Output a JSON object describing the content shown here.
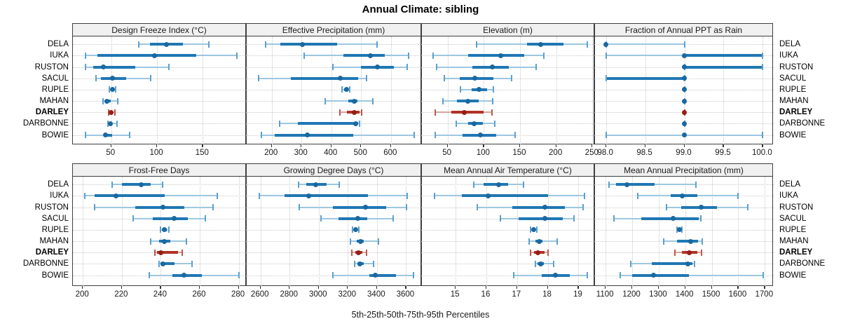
{
  "title": "Annual Climate: sibling",
  "footer": "5th-25th-50th-75th-95th Percentiles",
  "highlight_site": "DARLEY",
  "sites": [
    "DELA",
    "IUKA",
    "RUSTON",
    "SACUL",
    "RUPLE",
    "MAHAN",
    "DARLEY",
    "DARBONNE",
    "BOWIE"
  ],
  "colors": {
    "blue_light": "#9dc7e1",
    "blue_main": "#2077b4",
    "blue_cap": "#5da0cd",
    "blue_dot": "#1a689f",
    "red_light": "#dba49c",
    "red_main": "#b03228",
    "red_cap": "#c2564a",
    "red_dot": "#951f15",
    "header_bg": "#f0f0f0",
    "border": "#3f3f3f",
    "grid": "#c9c9c9"
  },
  "chart_data": {
    "type": "dot-interval-trellis",
    "percentiles": [
      5,
      25,
      50,
      75,
      95
    ],
    "legend_note": "5th-25th-50th-75th-95th Percentiles",
    "sites": [
      "DELA",
      "IUKA",
      "RUSTON",
      "SACUL",
      "RUPLE",
      "MAHAN",
      "DARLEY",
      "DARBONNE",
      "BOWIE"
    ],
    "panels": [
      {
        "id": "design-freeze-index",
        "title": "Design Freeze Index (°C)",
        "row": 0,
        "col": 0,
        "xdomain": [
          8,
          198
        ],
        "ticks": [
          50,
          100,
          150
        ],
        "tick_labels": [
          "50",
          "100",
          "150"
        ],
        "values": {
          "DELA": [
            80,
            92,
            110,
            128,
            157
          ],
          "IUKA": [
            22,
            35,
            97,
            143,
            187
          ],
          "RUSTON": [
            22,
            30,
            41,
            76,
            113
          ],
          "SACUL": [
            33,
            39,
            51,
            66,
            93
          ],
          "RUPLE": [
            48,
            50,
            51,
            53,
            55
          ],
          "MAHAN": [
            41,
            43,
            45,
            49,
            57
          ],
          "DARLEY": [
            47,
            48,
            50,
            52,
            54
          ],
          "DARBONNE": [
            46,
            48,
            49,
            51,
            56
          ],
          "BOWIE": [
            22,
            42,
            44,
            51,
            70
          ]
        }
      },
      {
        "id": "effective-precipitation",
        "title": "Effective Precipitation (mm)",
        "row": 0,
        "col": 1,
        "xdomain": [
          116,
          704
        ],
        "ticks": [
          200,
          300,
          400,
          500,
          600
        ],
        "tick_labels": [
          "200",
          "300",
          "400",
          "500",
          "600"
        ],
        "values": {
          "DELA": [
            180,
            228,
            302,
            420,
            554
          ],
          "IUKA": [
            310,
            440,
            530,
            580,
            660
          ],
          "RUSTON": [
            405,
            500,
            555,
            610,
            655
          ],
          "SACUL": [
            155,
            263,
            430,
            490,
            518
          ],
          "RUPLE": [
            435,
            444,
            450,
            456,
            462
          ],
          "MAHAN": [
            380,
            458,
            478,
            488,
            540
          ],
          "DARLEY": [
            428,
            452,
            478,
            495,
            502
          ],
          "DARBONNE": [
            226,
            287,
            481,
            491,
            494
          ],
          "BOWIE": [
            165,
            210,
            320,
            473,
            679
          ]
        }
      },
      {
        "id": "elevation",
        "title": "Elevation (m)",
        "row": 0,
        "col": 2,
        "xdomain": [
          14.5,
          253.6
        ],
        "ticks": [
          50,
          100,
          150,
          200,
          250
        ],
        "tick_labels": [
          "50",
          "100",
          "150",
          "200",
          "250"
        ],
        "values": {
          "DELA": [
            90,
            160,
            179,
            210,
            243
          ],
          "IUKA": [
            30,
            78,
            123,
            156,
            183
          ],
          "RUSTON": [
            35,
            84,
            112,
            135,
            172
          ],
          "SACUL": [
            45,
            67,
            88,
            113,
            138
          ],
          "RUPLE": [
            68,
            83,
            93,
            105,
            113
          ],
          "MAHAN": [
            44,
            63,
            78,
            93,
            112
          ],
          "DARLEY": [
            33,
            55,
            73,
            100,
            111
          ],
          "DARBONNE": [
            62,
            78,
            87,
            99,
            115
          ],
          "BOWIE": [
            33,
            71,
            95,
            117,
            143
          ]
        }
      },
      {
        "id": "fraction-ppt-rain",
        "title": "Fraction of Annual PPT as Rain",
        "row": 0,
        "col": 3,
        "xdomain": [
          97.86,
          100.14
        ],
        "ticks": [
          98.0,
          98.5,
          99.0,
          99.5,
          100.0
        ],
        "tick_labels": [
          "98.0",
          "98.5",
          "99.0",
          "99.5",
          "100.0"
        ],
        "values": {
          "DELA": [
            98.0,
            98.0,
            98.0,
            98.0,
            99.0
          ],
          "IUKA": [
            98.0,
            99.0,
            99.0,
            100.0,
            100.0
          ],
          "RUSTON": [
            99.0,
            99.0,
            99.0,
            100.0,
            100.0
          ],
          "SACUL": [
            98.0,
            98.0,
            99.0,
            99.0,
            99.0
          ],
          "RUPLE": [
            99.0,
            99.0,
            99.0,
            99.0,
            99.0
          ],
          "MAHAN": [
            99.0,
            99.0,
            99.0,
            99.0,
            99.0
          ],
          "DARLEY": [
            99.0,
            99.0,
            99.0,
            99.0,
            99.0
          ],
          "DARBONNE": [
            99.0,
            99.0,
            99.0,
            99.0,
            99.0
          ],
          "BOWIE": [
            98.0,
            99.0,
            99.0,
            99.0,
            100.0
          ]
        }
      },
      {
        "id": "frost-free-days",
        "title": "Frost-Free Days",
        "row": 1,
        "col": 0,
        "xdomain": [
          194.9,
          284.1
        ],
        "ticks": [
          200,
          220,
          240,
          260,
          280
        ],
        "tick_labels": [
          "200",
          "220",
          "240",
          "260",
          "280"
        ],
        "values": {
          "DELA": [
            215,
            220,
            230,
            235,
            241
          ],
          "IUKA": [
            201,
            206,
            217,
            242,
            269
          ],
          "RUSTON": [
            206,
            227,
            241,
            252,
            267
          ],
          "SACUL": [
            226,
            236,
            247,
            254,
            263
          ],
          "RUPLE": [
            240,
            241,
            242,
            243,
            244
          ],
          "MAHAN": [
            235,
            239,
            242,
            245,
            253
          ],
          "DARLEY": [
            237,
            238,
            240,
            249,
            251
          ],
          "DARBONNE": [
            239,
            240,
            241,
            247,
            256
          ],
          "BOWIE": [
            234,
            246,
            252,
            261,
            280
          ]
        }
      },
      {
        "id": "growing-degree-days",
        "title": "Growing Degree Days (°C)",
        "row": 1,
        "col": 1,
        "xdomain": [
          2505,
          3709
        ],
        "ticks": [
          2600,
          2800,
          3000,
          3200,
          3400,
          3600
        ],
        "tick_labels": [
          "2600",
          "2800",
          "3000",
          "3200",
          "3400",
          "3600"
        ],
        "values": {
          "DELA": [
            2860,
            2915,
            2980,
            3055,
            3140
          ],
          "IUKA": [
            2590,
            2765,
            2930,
            3340,
            3610
          ],
          "RUSTON": [
            2865,
            3095,
            3320,
            3465,
            3605
          ],
          "SACUL": [
            3015,
            3135,
            3270,
            3335,
            3510
          ],
          "RUPLE": [
            3230,
            3245,
            3255,
            3265,
            3275
          ],
          "MAHAN": [
            3220,
            3260,
            3290,
            3310,
            3410
          ],
          "DARLEY": [
            3225,
            3250,
            3275,
            3300,
            3330
          ],
          "DARBONNE": [
            3245,
            3265,
            3285,
            3310,
            3375
          ],
          "BOWIE": [
            3095,
            3350,
            3390,
            3530,
            3650
          ]
        }
      },
      {
        "id": "mean-annual-air-temperature",
        "title": "Mean Annual Air Temperature (°C)",
        "row": 1,
        "col": 2,
        "xdomain": [
          13.9,
          19.54
        ],
        "ticks": [
          15,
          16,
          17,
          18,
          19
        ],
        "tick_labels": [
          "15",
          "16",
          "17",
          "18",
          "19"
        ],
        "values": {
          "DELA": [
            15.6,
            15.9,
            16.4,
            16.7,
            17.2
          ],
          "IUKA": [
            14.3,
            15.2,
            16.05,
            18.0,
            19.2
          ],
          "RUSTON": [
            15.7,
            16.85,
            17.9,
            18.55,
            19.15
          ],
          "SACUL": [
            16.45,
            17.05,
            17.9,
            18.5,
            18.85
          ],
          "RUPLE": [
            17.45,
            17.5,
            17.55,
            17.6,
            17.65
          ],
          "MAHAN": [
            17.4,
            17.6,
            17.72,
            17.83,
            18.3
          ],
          "DARLEY": [
            17.45,
            17.55,
            17.68,
            17.9,
            18.0
          ],
          "DARBONNE": [
            17.6,
            17.67,
            17.76,
            17.87,
            18.2
          ],
          "BOWIE": [
            16.9,
            17.8,
            18.25,
            18.72,
            19.3
          ]
        }
      },
      {
        "id": "mean-annual-precipitation",
        "title": "Mean Annual Precipitation (mm)",
        "row": 1,
        "col": 3,
        "xdomain": [
          1060,
          1733.5
        ],
        "ticks": [
          1100,
          1200,
          1300,
          1400,
          1500,
          1600,
          1700
        ],
        "tick_labels": [
          "1100",
          "1200",
          "1300",
          "1400",
          "1500",
          "1600",
          "1700"
        ],
        "values": {
          "DELA": [
            1113,
            1140,
            1180,
            1285,
            1440
          ],
          "IUKA": [
            1220,
            1345,
            1390,
            1445,
            1600
          ],
          "RUSTON": [
            1330,
            1385,
            1460,
            1520,
            1635
          ],
          "SACUL": [
            1130,
            1235,
            1355,
            1450,
            1460
          ],
          "RUPLE": [
            1368,
            1374,
            1378,
            1383,
            1388
          ],
          "MAHAN": [
            1320,
            1370,
            1420,
            1447,
            1465
          ],
          "DARLEY": [
            1360,
            1388,
            1415,
            1445,
            1462
          ],
          "DARBONNE": [
            1195,
            1275,
            1410,
            1428,
            1435
          ],
          "BOWIE": [
            1155,
            1200,
            1280,
            1415,
            1695
          ]
        }
      }
    ]
  }
}
